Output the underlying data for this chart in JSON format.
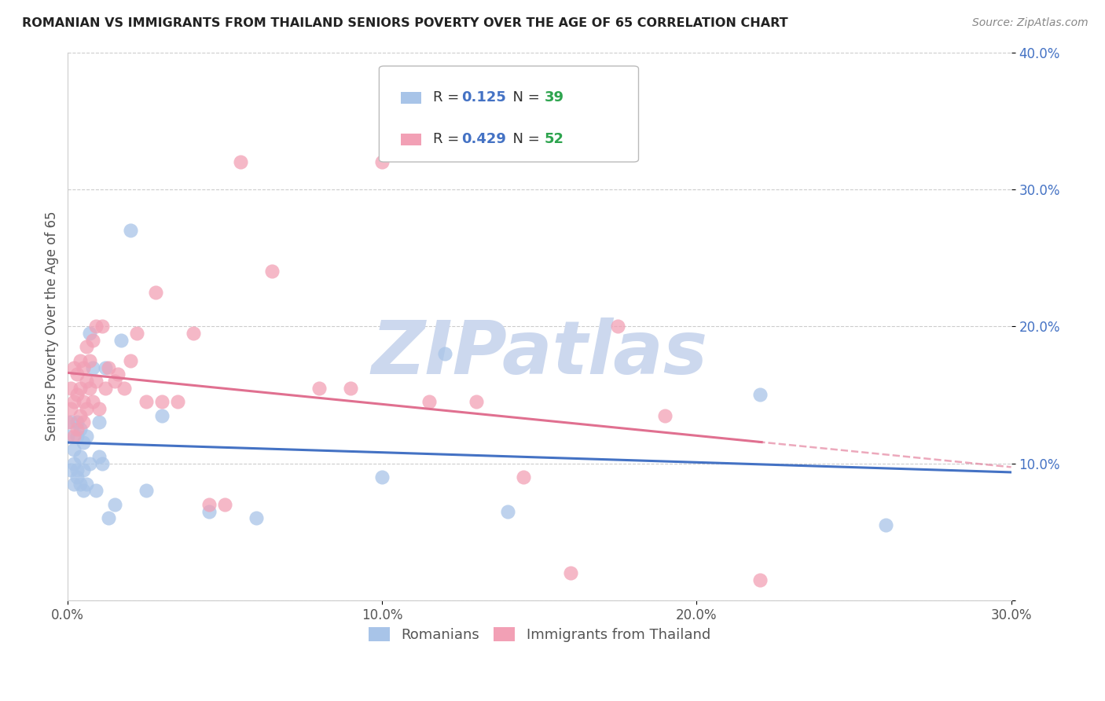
{
  "title": "ROMANIAN VS IMMIGRANTS FROM THAILAND SENIORS POVERTY OVER THE AGE OF 65 CORRELATION CHART",
  "source": "Source: ZipAtlas.com",
  "ylabel": "Seniors Poverty Over the Age of 65",
  "blue_R": 0.125,
  "blue_N": 39,
  "pink_R": 0.429,
  "pink_N": 52,
  "blue_color": "#a8c4e8",
  "pink_color": "#f2a0b5",
  "blue_line_color": "#4472c4",
  "pink_line_color": "#e07090",
  "watermark": "ZIPatlas",
  "watermark_color": "#ccd8ee",
  "legend_R_color": "#4472c4",
  "legend_N_color": "#2da44e",
  "xlim": [
    0.0,
    0.3
  ],
  "ylim": [
    0.0,
    0.4
  ],
  "blue_x": [
    0.0,
    0.001,
    0.001,
    0.002,
    0.002,
    0.002,
    0.003,
    0.003,
    0.003,
    0.003,
    0.004,
    0.004,
    0.004,
    0.005,
    0.005,
    0.005,
    0.006,
    0.006,
    0.007,
    0.007,
    0.008,
    0.009,
    0.01,
    0.01,
    0.011,
    0.012,
    0.013,
    0.015,
    0.017,
    0.02,
    0.025,
    0.03,
    0.045,
    0.06,
    0.1,
    0.12,
    0.14,
    0.22,
    0.26
  ],
  "blue_y": [
    0.12,
    0.095,
    0.13,
    0.085,
    0.1,
    0.11,
    0.09,
    0.095,
    0.12,
    0.13,
    0.085,
    0.105,
    0.125,
    0.08,
    0.095,
    0.115,
    0.085,
    0.12,
    0.1,
    0.195,
    0.17,
    0.08,
    0.13,
    0.105,
    0.1,
    0.17,
    0.06,
    0.07,
    0.19,
    0.27,
    0.08,
    0.135,
    0.065,
    0.06,
    0.09,
    0.18,
    0.065,
    0.15,
    0.055
  ],
  "pink_x": [
    0.0,
    0.001,
    0.001,
    0.002,
    0.002,
    0.002,
    0.003,
    0.003,
    0.003,
    0.004,
    0.004,
    0.004,
    0.005,
    0.005,
    0.005,
    0.006,
    0.006,
    0.006,
    0.007,
    0.007,
    0.008,
    0.008,
    0.009,
    0.009,
    0.01,
    0.011,
    0.012,
    0.013,
    0.015,
    0.016,
    0.018,
    0.02,
    0.022,
    0.025,
    0.028,
    0.03,
    0.035,
    0.04,
    0.045,
    0.05,
    0.055,
    0.065,
    0.08,
    0.09,
    0.1,
    0.115,
    0.13,
    0.145,
    0.16,
    0.175,
    0.19,
    0.22
  ],
  "pink_y": [
    0.13,
    0.14,
    0.155,
    0.12,
    0.145,
    0.17,
    0.125,
    0.15,
    0.165,
    0.135,
    0.155,
    0.175,
    0.13,
    0.145,
    0.17,
    0.14,
    0.16,
    0.185,
    0.155,
    0.175,
    0.145,
    0.19,
    0.16,
    0.2,
    0.14,
    0.2,
    0.155,
    0.17,
    0.16,
    0.165,
    0.155,
    0.175,
    0.195,
    0.145,
    0.225,
    0.145,
    0.145,
    0.195,
    0.07,
    0.07,
    0.32,
    0.24,
    0.155,
    0.155,
    0.32,
    0.145,
    0.145,
    0.09,
    0.02,
    0.2,
    0.135,
    0.015
  ]
}
